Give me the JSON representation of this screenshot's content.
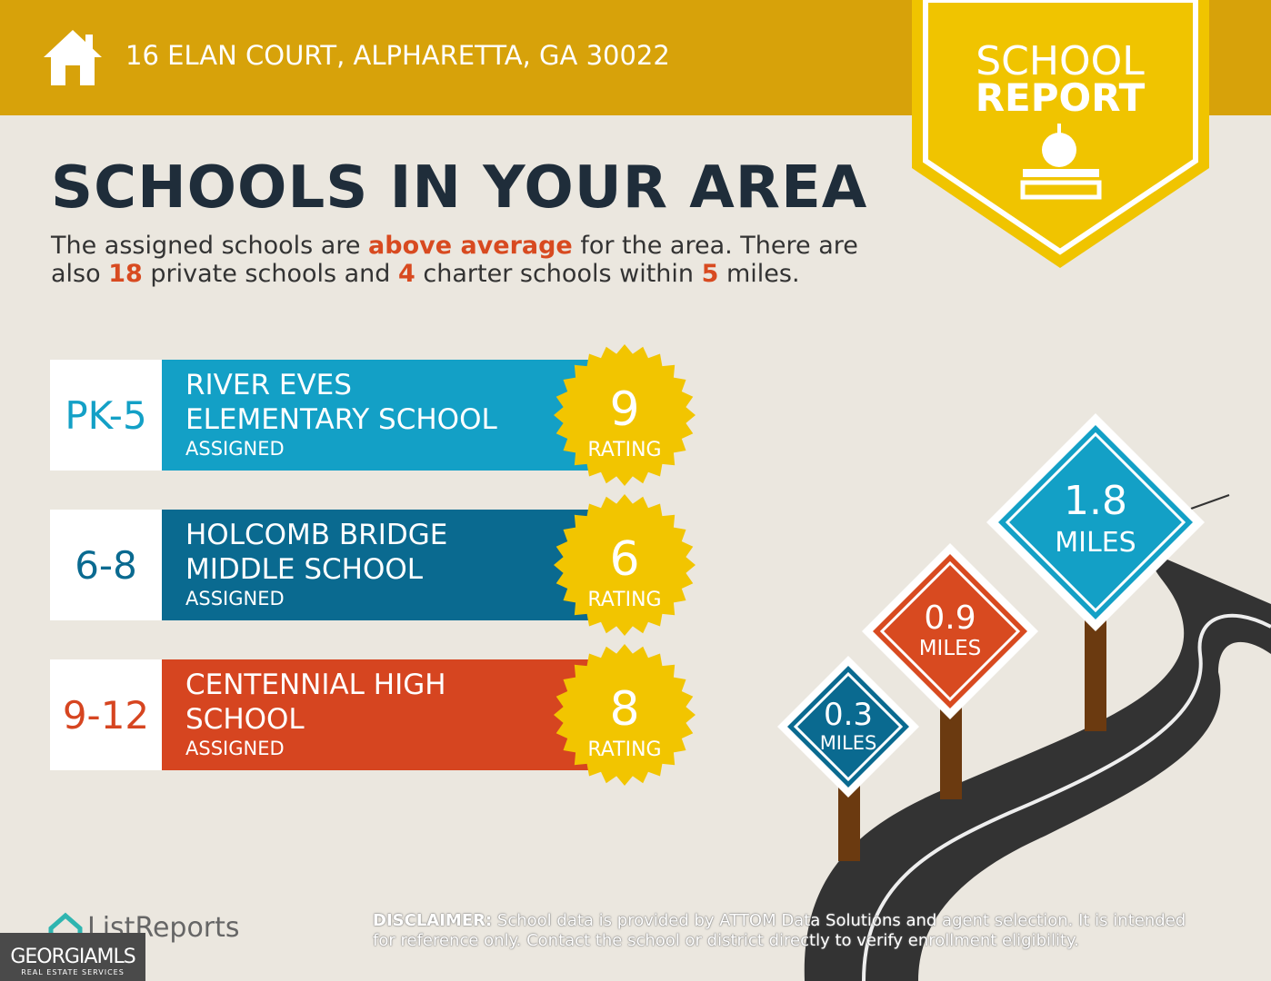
{
  "header": {
    "address": "16 ELAN COURT, ALPHARETTA, GA 30022"
  },
  "badge": {
    "line1": "SCHOOL",
    "line2": "REPORT"
  },
  "title": "SCHOOLS IN YOUR AREA",
  "intro": {
    "parts": [
      "The assigned schools are ",
      "above average",
      " for the area. There are also ",
      "18",
      " private schools and ",
      "4",
      " charter schools within ",
      "5",
      " miles."
    ]
  },
  "schools": [
    {
      "grades": "PK-5",
      "name_line1": "RIVER EVES",
      "name_line2": "ELEMENTARY SCHOOL",
      "status": "ASSIGNED",
      "rating": "9",
      "rating_label": "RATING"
    },
    {
      "grades": "6-8",
      "name_line1": "HOLCOMB BRIDGE",
      "name_line2": "MIDDLE SCHOOL",
      "status": "ASSIGNED",
      "rating": "6",
      "rating_label": "RATING"
    },
    {
      "grades": "9-12",
      "name_line1": "CENTENNIAL HIGH",
      "name_line2": "SCHOOL",
      "status": "ASSIGNED",
      "rating": "8",
      "rating_label": "RATING"
    }
  ],
  "signs": [
    {
      "distance": "1.8",
      "unit": "MILES"
    },
    {
      "distance": "0.9",
      "unit": "MILES"
    },
    {
      "distance": "0.3",
      "unit": "MILES"
    }
  ],
  "footer": {
    "logo": "ListReports",
    "disclaimer_label": "DISCLAIMER:",
    "disclaimer": "School data is provided by ATTOM Data Solutions and agent selection. It is intended for reference only. Contact the school or district directly to verify enrollment eligibility.",
    "mls_a": "GEORGIA",
    "mls_b": "MLS",
    "mls_sub": "REAL ESTATE SERVICES"
  }
}
